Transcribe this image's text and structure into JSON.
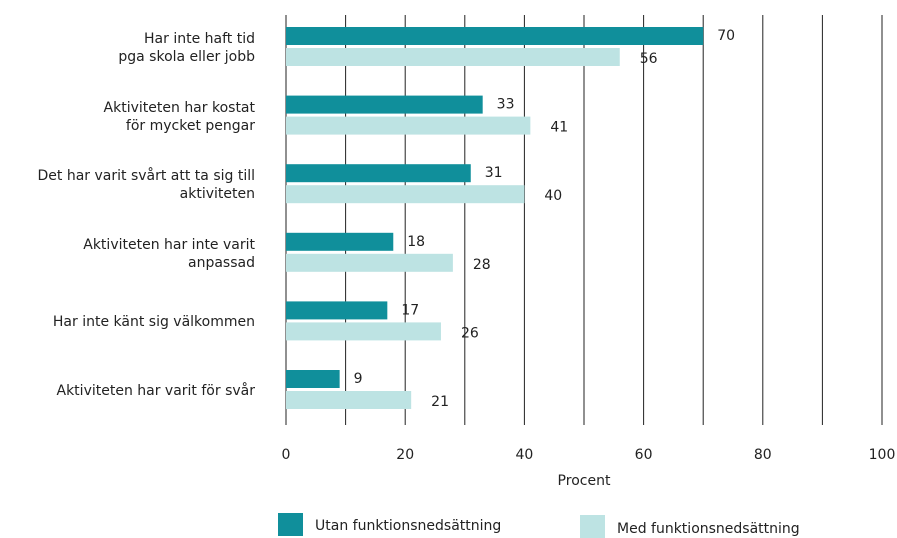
{
  "chart_data": {
    "type": "bar",
    "orientation": "horizontal",
    "categories": [
      "Har inte haft tid\npga skola eller jobb",
      "Aktiviteten har kostat\nför mycket pengar",
      "Det har varit svårt att ta sig till\naktiviteten",
      "Aktiviteten har inte varit\nanpassad",
      "Har inte känt sig välkommen",
      "Aktiviteten har varit för svår"
    ],
    "series": [
      {
        "name": "Utan funktionsnedsättning",
        "color": "#108f9b",
        "values": [
          70,
          33,
          31,
          18,
          17,
          9
        ]
      },
      {
        "name": "Med funktionsnedsättning",
        "color": "#bde3e3",
        "values": [
          56,
          41,
          40,
          28,
          26,
          21
        ]
      }
    ],
    "xlabel": "Procent",
    "xlim": [
      0,
      100
    ],
    "xticks": [
      0,
      20,
      40,
      60,
      80,
      100
    ],
    "minor_xticks": [
      10,
      30,
      50,
      70,
      90
    ],
    "grid": true,
    "legend": "bottom"
  }
}
